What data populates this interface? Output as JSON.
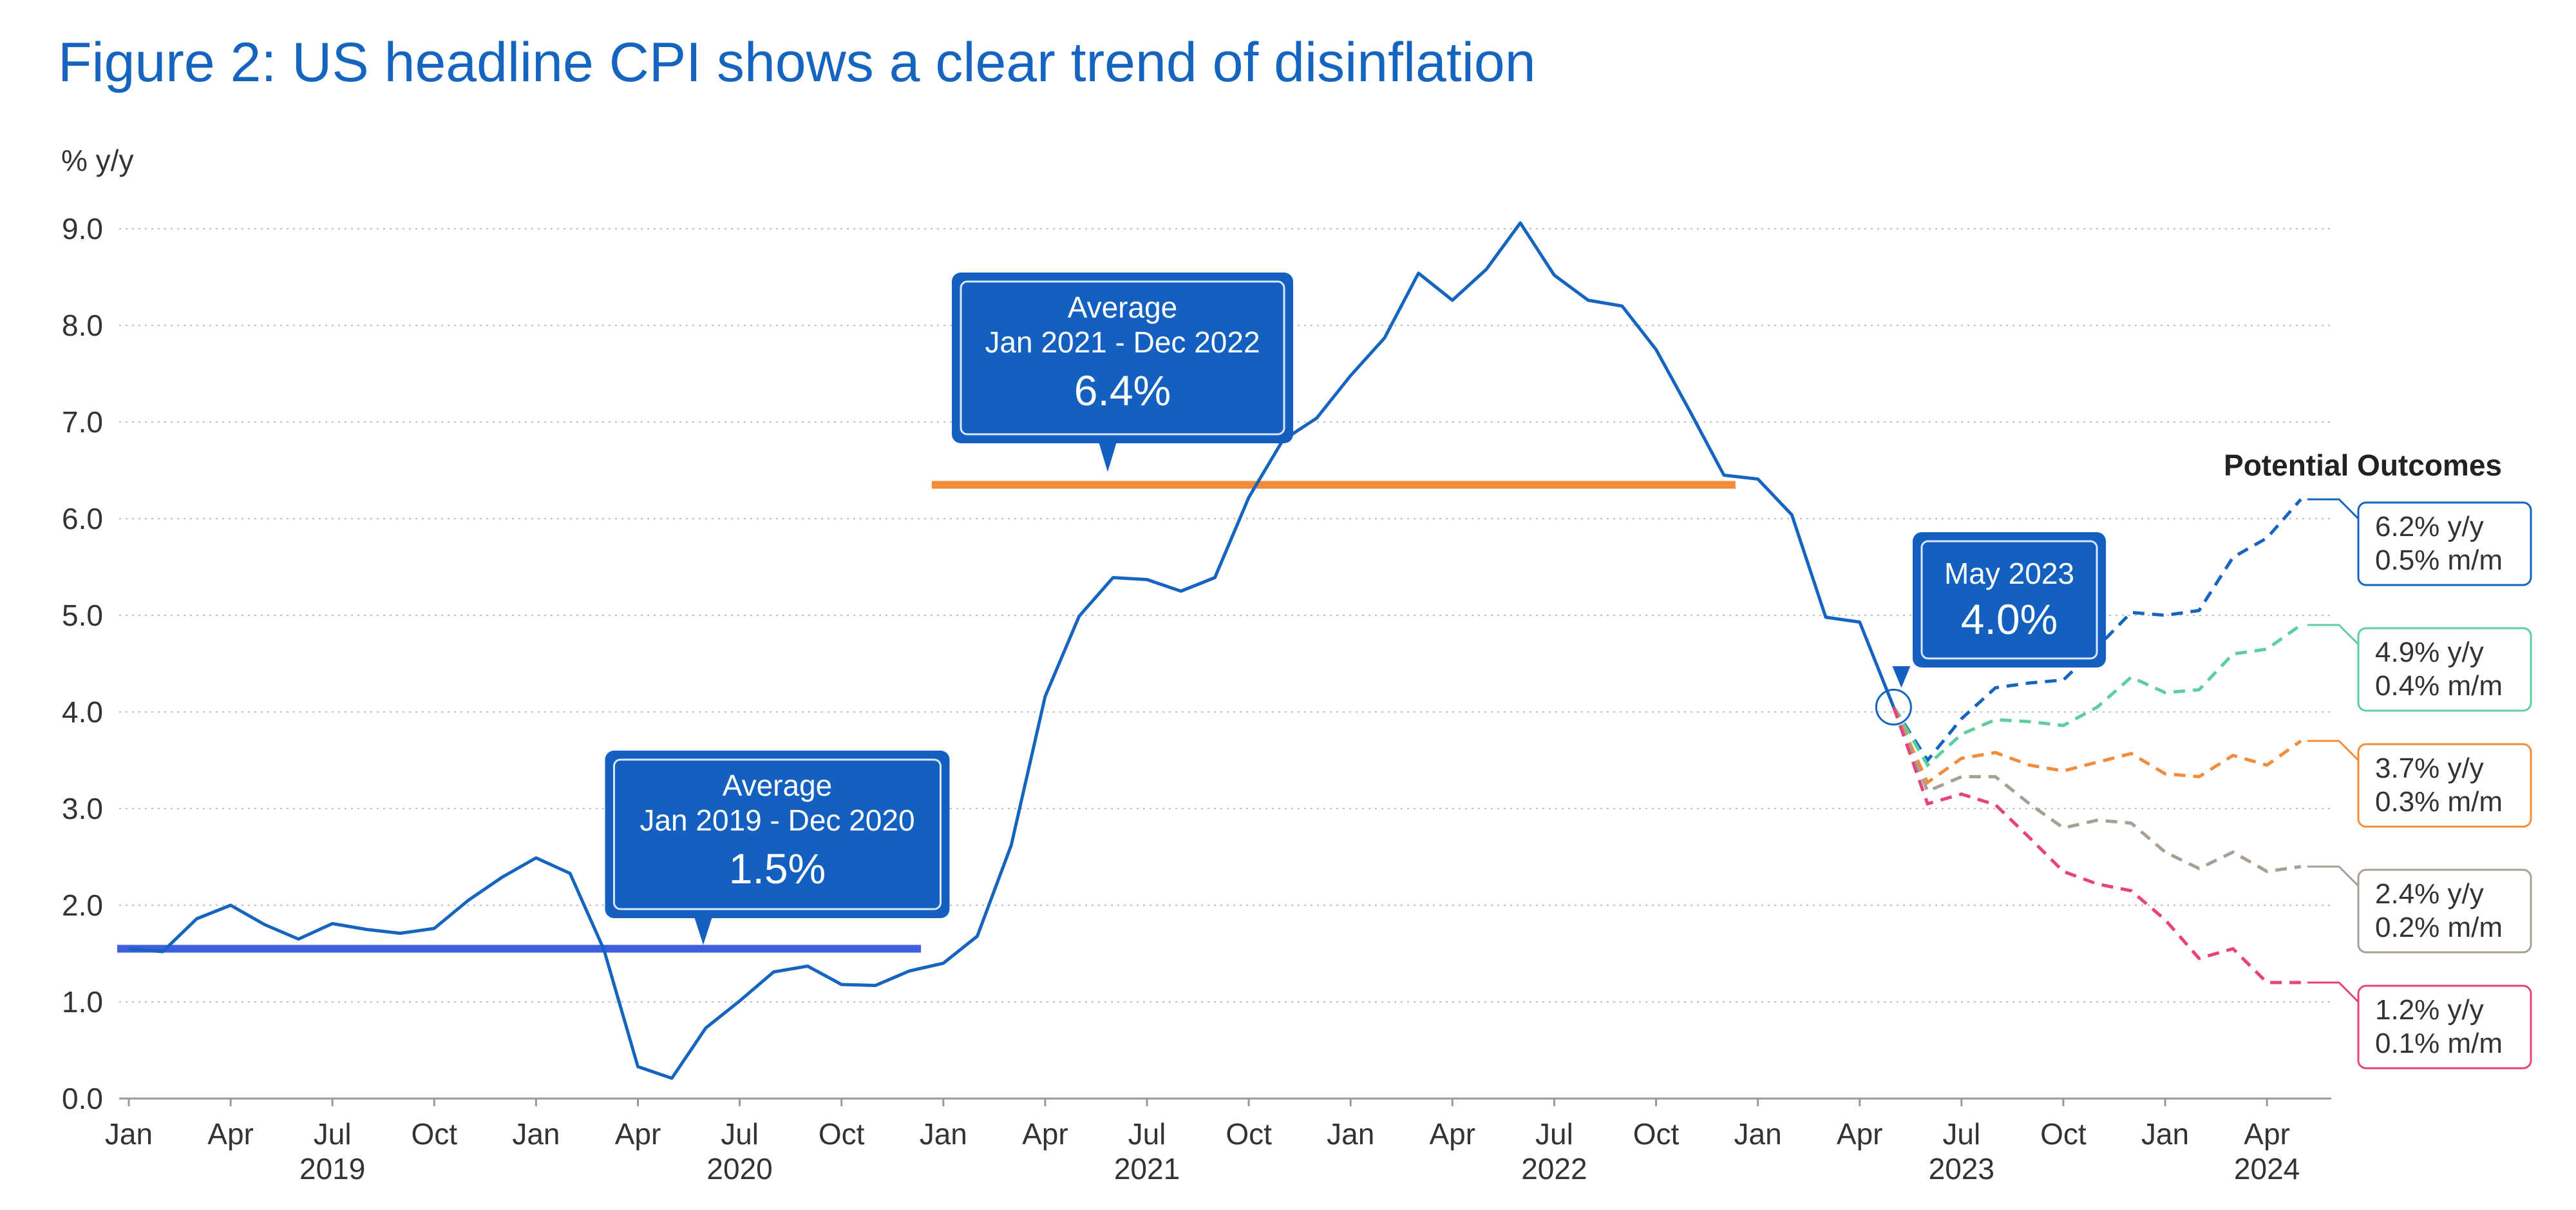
{
  "chart_data": {
    "type": "line",
    "title": "Figure 2: US headline CPI shows a clear trend of disinflation",
    "ylabel": "% y/y",
    "ylim": [
      0,
      9
    ],
    "yticks": [
      "0.0",
      "1.0",
      "2.0",
      "3.0",
      "4.0",
      "5.0",
      "6.0",
      "7.0",
      "8.0",
      "9.0"
    ],
    "grid": true,
    "x_range": [
      "2019-01",
      "2024-06"
    ],
    "x_tick_labels": [
      {
        "month": "2019-01",
        "label": "Jan"
      },
      {
        "month": "2019-04",
        "label": "Apr"
      },
      {
        "month": "2019-07",
        "label": "Jul",
        "year": "2019"
      },
      {
        "month": "2019-10",
        "label": "Oct"
      },
      {
        "month": "2020-01",
        "label": "Jan"
      },
      {
        "month": "2020-04",
        "label": "Apr"
      },
      {
        "month": "2020-07",
        "label": "Jul",
        "year": "2020"
      },
      {
        "month": "2020-10",
        "label": "Oct"
      },
      {
        "month": "2021-01",
        "label": "Jan"
      },
      {
        "month": "2021-04",
        "label": "Apr"
      },
      {
        "month": "2021-07",
        "label": "Jul",
        "year": "2021"
      },
      {
        "month": "2021-10",
        "label": "Oct"
      },
      {
        "month": "2022-01",
        "label": "Jan"
      },
      {
        "month": "2022-04",
        "label": "Apr"
      },
      {
        "month": "2022-07",
        "label": "Jul",
        "year": "2022"
      },
      {
        "month": "2022-10",
        "label": "Oct"
      },
      {
        "month": "2023-01",
        "label": "Jan"
      },
      {
        "month": "2023-04",
        "label": "Apr"
      },
      {
        "month": "2023-07",
        "label": "Jul",
        "year": "2023"
      },
      {
        "month": "2023-10",
        "label": "Oct"
      },
      {
        "month": "2024-01",
        "label": "Jan"
      },
      {
        "month": "2024-04",
        "label": "Apr",
        "year": "2024"
      }
    ],
    "series": [
      {
        "color": "#1565c0",
        "start": "2019-01",
        "values": [
          1.55,
          1.52,
          1.86,
          2.0,
          1.8,
          1.65,
          1.81,
          1.75,
          1.71,
          1.76,
          2.05,
          2.29,
          2.49,
          2.33,
          1.54,
          0.33,
          0.21,
          0.73,
          1.01,
          1.31,
          1.37,
          1.18,
          1.17,
          1.32,
          1.4,
          1.68,
          2.62,
          4.16,
          4.99,
          5.39,
          5.37,
          5.25,
          5.39,
          6.22,
          6.81,
          7.04,
          7.48,
          7.87,
          8.54,
          8.26,
          8.58,
          9.06,
          8.52,
          8.26,
          8.2,
          7.75,
          7.11,
          6.45,
          6.41,
          6.04,
          4.98,
          4.93,
          4.05
        ]
      }
    ],
    "projections": {
      "title": "Potential Outcomes",
      "start": "2023-05",
      "scenarios": [
        {
          "label_yy": "6.2% y/y",
          "label_mm": "0.5% m/m",
          "color": "#1565c0",
          "values": [
            4.05,
            3.5,
            3.93,
            4.25,
            4.3,
            4.33,
            4.67,
            5.03,
            5.0,
            5.05,
            5.6,
            5.8,
            6.2
          ]
        },
        {
          "label_yy": "4.9% y/y",
          "label_mm": "0.4% m/m",
          "color": "#5dcf9d",
          "values": [
            4.05,
            3.45,
            3.77,
            3.92,
            3.9,
            3.86,
            4.05,
            4.36,
            4.2,
            4.23,
            4.6,
            4.65,
            4.9
          ]
        },
        {
          "label_yy": "3.7% y/y",
          "label_mm": "0.3% m/m",
          "color": "#f28c3a",
          "values": [
            4.05,
            3.27,
            3.52,
            3.58,
            3.45,
            3.39,
            3.48,
            3.57,
            3.36,
            3.33,
            3.55,
            3.45,
            3.7
          ]
        },
        {
          "label_yy": "2.4% y/y",
          "label_mm": "0.2% m/m",
          "color": "#a89f94",
          "values": [
            4.05,
            3.18,
            3.33,
            3.33,
            3.05,
            2.8,
            2.88,
            2.85,
            2.55,
            2.38,
            2.55,
            2.35,
            2.4
          ]
        },
        {
          "label_yy": "1.2% y/y",
          "label_mm": "0.1% m/m",
          "color": "#e8427a",
          "values": [
            4.05,
            3.05,
            3.15,
            3.04,
            2.7,
            2.35,
            2.22,
            2.15,
            1.85,
            1.45,
            1.55,
            1.2,
            1.2
          ]
        }
      ]
    },
    "averages": [
      {
        "label": "Average",
        "period": "Jan 2019 - Dec 2020",
        "value_label": "1.5%",
        "value": 1.55,
        "from": "2019-01",
        "to": "2020-12",
        "color": "#3d5fe0"
      },
      {
        "label": "Average",
        "period": "Jan 2021 - Dec 2022",
        "value_label": "6.4%",
        "value": 6.35,
        "from": "2021-01",
        "to": "2022-12",
        "color": "#f28c3a"
      }
    ],
    "latest": {
      "label": "May 2023",
      "value_label": "4.0%",
      "month": "2023-05",
      "value": 4.05
    }
  }
}
